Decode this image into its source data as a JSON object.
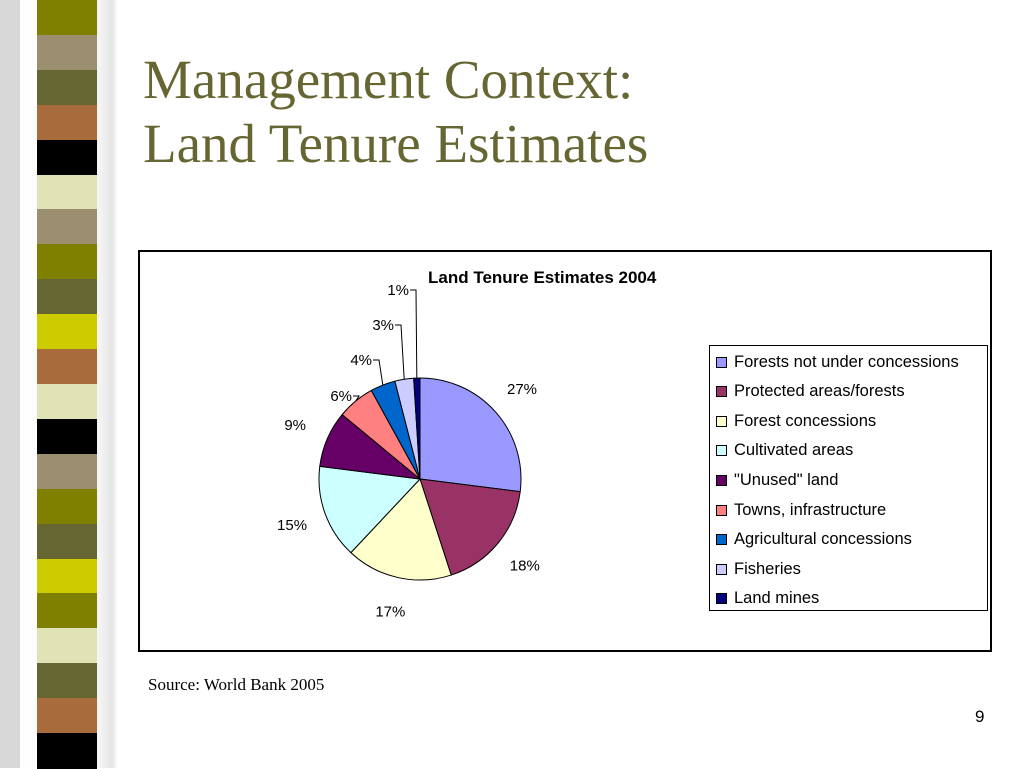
{
  "slide": {
    "title_line1": "Management Context:",
    "title_line2": "Land Tenure Estimates",
    "source": "Source: World Bank 2005",
    "page_number": "9",
    "title_color": "#666633"
  },
  "stripe_colors": [
    "#7f7f00",
    "#9b8f6f",
    "#666633",
    "#a86b3b",
    "#000000",
    "#dfe3b5",
    "#9b8f6f",
    "#7f7f00",
    "#666633",
    "#cccc00",
    "#a86b3b",
    "#dfe3b5",
    "#000000",
    "#9b8f6f",
    "#7f7f00",
    "#666633",
    "#cccc00",
    "#7f7f00",
    "#dfe3b5",
    "#666633",
    "#a86b3b",
    "#000000"
  ],
  "chart_data": {
    "type": "pie",
    "title": "Land Tenure Estimates 2004",
    "categories": [
      "Forests not under concessions",
      "Protected areas/forests",
      "Forest concessions",
      "Cultivated areas",
      "\"Unused\" land",
      "Towns, infrastructure",
      "Agricultural concessions",
      "Fisheries",
      "Land mines"
    ],
    "values": [
      27,
      18,
      17,
      15,
      9,
      6,
      4,
      3,
      1
    ],
    "labels": [
      "27%",
      "18%",
      "17%",
      "15%",
      "9%",
      "6%",
      "4%",
      "3%",
      "1%"
    ],
    "colors": [
      "#9999ff",
      "#993366",
      "#ffffcc",
      "#ccffff",
      "#660066",
      "#ff8080",
      "#0066cc",
      "#ccccff",
      "#000080"
    ],
    "legend_position": "right"
  }
}
